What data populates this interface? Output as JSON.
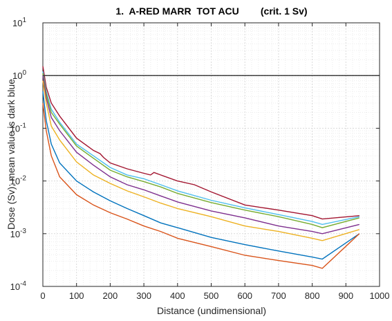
{
  "chart_data": {
    "type": "line",
    "title": "1.  A-RED MARR  TOT ACU        (crit. 1 Sv)",
    "xlabel": "Distance (undimensional)",
    "ylabel": "Dose (Sv); mean value is dark blue",
    "xlim": [
      0,
      1000
    ],
    "ylim": [
      0.0001,
      10
    ],
    "yscale": "log",
    "grid": true,
    "minor_grid": true,
    "xticks": [
      "0",
      "100",
      "200",
      "300",
      "400",
      "500",
      "600",
      "700",
      "800",
      "900",
      "1000"
    ],
    "xtick_values": [
      0,
      100,
      200,
      300,
      400,
      500,
      600,
      700,
      800,
      900,
      1000
    ],
    "ytick_values": [
      0.0001,
      0.001,
      0.01,
      0.1,
      1,
      10
    ],
    "ytick_exponents": [
      "-4",
      "-3",
      "-2",
      "-1",
      "0",
      "1"
    ],
    "ytick_base": "10",
    "reference_line": {
      "y": 1,
      "color": "#000000"
    },
    "series": [
      {
        "color": "#A2142F",
        "x": [
          0,
          10,
          25,
          50,
          100,
          150,
          170,
          180,
          200,
          250,
          300,
          320,
          330,
          350,
          400,
          450,
          500,
          600,
          700,
          800,
          830,
          940
        ],
        "y": [
          1.5,
          0.6,
          0.3,
          0.17,
          0.065,
          0.038,
          0.033,
          0.028,
          0.022,
          0.017,
          0.014,
          0.013,
          0.0145,
          0.013,
          0.01,
          0.0085,
          0.0062,
          0.0035,
          0.0028,
          0.0022,
          0.0019,
          0.0022
        ]
      },
      {
        "color": "#4DBEEE",
        "x": [
          0,
          10,
          25,
          50,
          100,
          150,
          200,
          250,
          300,
          350,
          400,
          500,
          600,
          700,
          800,
          830,
          940
        ],
        "y": [
          1.2,
          0.5,
          0.23,
          0.13,
          0.05,
          0.03,
          0.018,
          0.013,
          0.011,
          0.0085,
          0.0065,
          0.0043,
          0.0031,
          0.0023,
          0.0017,
          0.0015,
          0.0021
        ]
      },
      {
        "color": "#77AC30",
        "x": [
          0,
          10,
          25,
          50,
          100,
          150,
          200,
          250,
          300,
          350,
          400,
          500,
          600,
          700,
          800,
          830,
          940
        ],
        "y": [
          1.1,
          0.45,
          0.2,
          0.12,
          0.046,
          0.027,
          0.016,
          0.012,
          0.0097,
          0.0077,
          0.0058,
          0.0039,
          0.0028,
          0.0021,
          0.0015,
          0.0013,
          0.002
        ]
      },
      {
        "color": "#7E2F8E",
        "x": [
          0,
          10,
          25,
          50,
          100,
          150,
          200,
          250,
          300,
          350,
          400,
          500,
          600,
          700,
          800,
          830,
          940
        ],
        "y": [
          1.0,
          0.38,
          0.16,
          0.09,
          0.035,
          0.02,
          0.012,
          0.0085,
          0.0068,
          0.0052,
          0.004,
          0.0027,
          0.002,
          0.0014,
          0.0011,
          0.001,
          0.0015
        ]
      },
      {
        "color": "#EDB120",
        "x": [
          0,
          10,
          25,
          50,
          100,
          150,
          200,
          250,
          300,
          350,
          400,
          500,
          600,
          700,
          800,
          830,
          940
        ],
        "y": [
          0.8,
          0.3,
          0.11,
          0.06,
          0.023,
          0.013,
          0.009,
          0.0065,
          0.005,
          0.0038,
          0.003,
          0.0021,
          0.0014,
          0.0011,
          0.00082,
          0.00074,
          0.0012
        ]
      },
      {
        "color": "#0072BD",
        "x": [
          0,
          10,
          25,
          50,
          100,
          150,
          200,
          250,
          300,
          350,
          400,
          500,
          600,
          700,
          800,
          830,
          940
        ],
        "y": [
          0.5,
          0.14,
          0.05,
          0.022,
          0.01,
          0.0062,
          0.0042,
          0.003,
          0.0022,
          0.0016,
          0.0013,
          0.00085,
          0.00062,
          0.00047,
          0.00036,
          0.00033,
          0.001
        ]
      },
      {
        "color": "#D95319",
        "x": [
          0,
          10,
          25,
          50,
          100,
          150,
          200,
          250,
          300,
          350,
          400,
          500,
          600,
          700,
          800,
          830,
          940
        ],
        "y": [
          0.3,
          0.09,
          0.03,
          0.012,
          0.0055,
          0.0035,
          0.0025,
          0.0019,
          0.0014,
          0.0011,
          0.00082,
          0.00057,
          0.00039,
          0.00031,
          0.00025,
          0.00022,
          0.001
        ]
      }
    ]
  }
}
